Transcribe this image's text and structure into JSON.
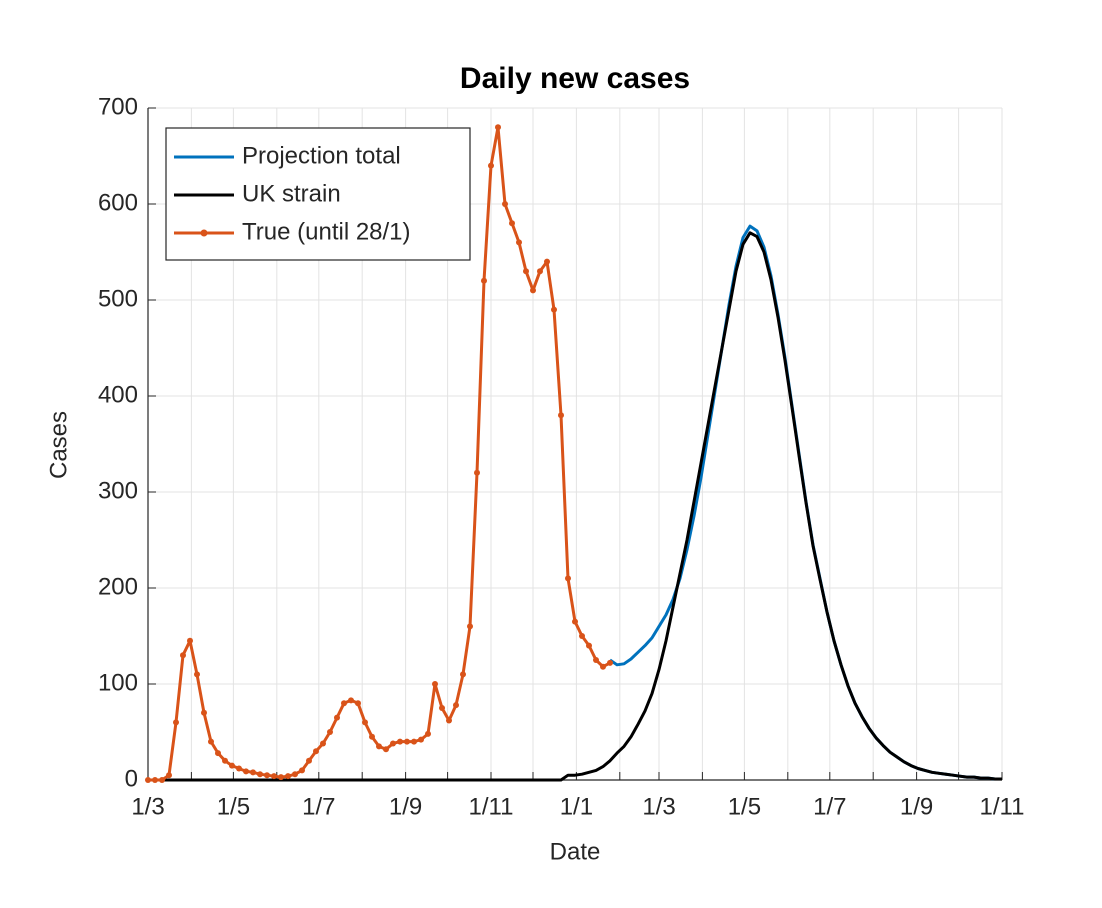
{
  "chart_data": {
    "type": "line",
    "title": "Daily new cases",
    "xlabel": "Date",
    "ylabel": "Cases",
    "x": [
      0,
      5,
      10,
      15,
      20,
      25,
      30,
      35,
      40,
      45,
      50,
      55,
      60,
      65,
      70,
      75,
      80,
      85,
      90,
      95,
      100,
      105,
      110,
      115,
      120,
      125,
      130,
      135,
      140,
      145,
      150,
      155,
      160,
      165,
      170,
      175,
      180,
      185,
      190,
      195,
      200,
      205,
      210,
      215,
      220,
      225,
      230,
      235,
      240,
      245,
      250,
      255,
      260,
      265,
      270,
      275,
      280,
      285,
      290,
      295,
      300,
      305,
      310,
      315,
      320,
      325,
      330,
      335,
      340,
      345,
      350,
      355,
      360,
      365,
      370,
      375,
      380,
      385,
      390,
      395,
      400,
      405,
      410,
      415,
      420,
      425,
      430,
      435,
      440,
      445,
      450,
      455,
      460,
      465,
      470,
      475,
      480,
      485,
      490,
      495,
      500,
      505,
      510,
      515,
      520,
      525,
      530,
      535,
      540,
      545,
      550,
      555,
      560,
      565,
      570,
      575,
      580,
      585,
      590,
      595,
      600,
      605,
      610
    ],
    "series": [
      {
        "name": "Projection total",
        "color": "#0072bd",
        "markers": false,
        "values": [
          null,
          null,
          null,
          null,
          null,
          null,
          null,
          null,
          null,
          null,
          null,
          null,
          null,
          null,
          null,
          null,
          null,
          null,
          null,
          null,
          null,
          null,
          null,
          null,
          null,
          null,
          null,
          null,
          null,
          null,
          null,
          null,
          null,
          null,
          null,
          null,
          null,
          null,
          null,
          null,
          null,
          null,
          null,
          null,
          null,
          null,
          null,
          null,
          null,
          null,
          null,
          null,
          null,
          null,
          null,
          null,
          null,
          null,
          null,
          null,
          null,
          null,
          null,
          null,
          null,
          null,
          125,
          120,
          121,
          126,
          133,
          140,
          148,
          160,
          172,
          188,
          210,
          240,
          275,
          315,
          360,
          405,
          450,
          495,
          535,
          565,
          577,
          572,
          555,
          525,
          485,
          440,
          390,
          340,
          290,
          245,
          210,
          175,
          145,
          120,
          98,
          80,
          66,
          54,
          44,
          36,
          29,
          24,
          19,
          15,
          12,
          10,
          8,
          7,
          6,
          5,
          4,
          3,
          3,
          2,
          2,
          1,
          1
        ]
      },
      {
        "name": "UK strain",
        "color": "#000000",
        "markers": false,
        "values": [
          0,
          0,
          0,
          0,
          0,
          0,
          0,
          0,
          0,
          0,
          0,
          0,
          0,
          0,
          0,
          0,
          0,
          0,
          0,
          0,
          0,
          0,
          0,
          0,
          0,
          0,
          0,
          0,
          0,
          0,
          0,
          0,
          0,
          0,
          0,
          0,
          0,
          0,
          0,
          0,
          0,
          0,
          0,
          0,
          0,
          0,
          0,
          0,
          0,
          0,
          0,
          0,
          0,
          0,
          0,
          0,
          0,
          0,
          0,
          0,
          5,
          5,
          6,
          8,
          10,
          14,
          20,
          28,
          35,
          45,
          58,
          72,
          90,
          115,
          145,
          180,
          215,
          250,
          290,
          330,
          370,
          410,
          450,
          490,
          530,
          558,
          570,
          566,
          550,
          521,
          482,
          437,
          388,
          338,
          289,
          244,
          209,
          175,
          145,
          120,
          98,
          80,
          66,
          54,
          44,
          36,
          29,
          24,
          19,
          15,
          12,
          10,
          8,
          7,
          6,
          5,
          4,
          3,
          3,
          2,
          2,
          1,
          1
        ]
      },
      {
        "name": "True (until 28/1)",
        "color": "#d95319",
        "markers": true,
        "values": [
          0,
          0,
          0,
          5,
          60,
          130,
          145,
          110,
          70,
          40,
          28,
          20,
          15,
          12,
          9,
          8,
          6,
          5,
          4,
          3,
          4,
          6,
          10,
          20,
          30,
          38,
          50,
          65,
          80,
          83,
          80,
          60,
          45,
          35,
          32,
          38,
          40,
          40,
          40,
          42,
          48,
          100,
          75,
          62,
          78,
          110,
          160,
          320,
          520,
          640,
          680,
          600,
          580,
          560,
          530,
          510,
          530,
          540,
          490,
          380,
          210,
          165,
          150,
          140,
          125,
          118,
          122,
          null,
          null,
          null,
          null,
          null,
          null,
          null,
          null,
          null,
          null,
          null,
          null,
          null,
          null,
          null,
          null,
          null,
          null,
          null,
          null,
          null,
          null,
          null,
          null,
          null,
          null,
          null,
          null,
          null,
          null,
          null,
          null,
          null,
          null,
          null,
          null,
          null,
          null,
          null,
          null,
          null,
          null,
          null,
          null,
          null,
          null,
          null,
          null,
          null,
          null,
          null,
          null,
          null,
          null,
          null,
          null
        ]
      }
    ],
    "xlim": [
      0,
      610
    ],
    "xticks": [
      {
        "value": 0,
        "label": "1/3"
      },
      {
        "value": 61,
        "label": "1/5"
      },
      {
        "value": 122,
        "label": "1/7"
      },
      {
        "value": 184,
        "label": "1/9"
      },
      {
        "value": 245,
        "label": "1/11"
      },
      {
        "value": 306,
        "label": "1/1"
      },
      {
        "value": 365,
        "label": "1/3"
      },
      {
        "value": 426,
        "label": "1/5"
      },
      {
        "value": 487,
        "label": "1/7"
      },
      {
        "value": 549,
        "label": "1/9"
      },
      {
        "value": 610,
        "label": "1/11"
      }
    ],
    "xminorticks": [
      31,
      92,
      153,
      214,
      275,
      337,
      396,
      457,
      518,
      579
    ],
    "ylim": [
      0,
      700
    ],
    "yticks": [
      0,
      100,
      200,
      300,
      400,
      500,
      600,
      700
    ],
    "grid": true,
    "legend": "upper left"
  }
}
